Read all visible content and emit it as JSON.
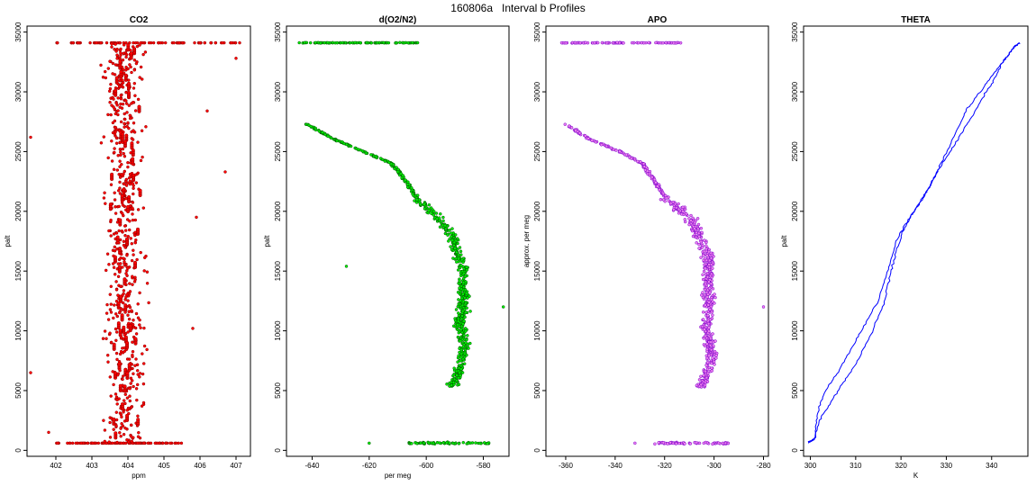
{
  "figure": {
    "title": "160806a   Interval b Profiles"
  },
  "chart_data": [
    {
      "type": "scatter",
      "title": "CO2",
      "xlabel": "ppm",
      "ylabel": "palt",
      "xlim": [
        401.2,
        407.4
      ],
      "ylim": [
        -500,
        35500
      ],
      "xticks": [
        402,
        403,
        404,
        405,
        406,
        407
      ],
      "yticks": [
        0,
        5000,
        10000,
        15000,
        20000,
        25000,
        30000,
        35000
      ],
      "point_color": "#ff0000",
      "point_edge_color": "#8b0000",
      "dense_band_x": [
        402.0,
        405.5
      ],
      "dense_band_y": [
        600,
        34100
      ],
      "bulk_center_x": 403.9,
      "bulk_halfwidth_x": 0.55,
      "outliers": [
        {
          "x": 401.3,
          "y": 26200
        },
        {
          "x": 401.3,
          "y": 6500
        },
        {
          "x": 406.7,
          "y": 23300
        },
        {
          "x": 407.0,
          "y": 32800
        },
        {
          "x": 407.1,
          "y": 34100
        },
        {
          "x": 406.2,
          "y": 28400
        },
        {
          "x": 405.9,
          "y": 19500
        },
        {
          "x": 405.8,
          "y": 10200
        },
        {
          "x": 401.8,
          "y": 1500
        }
      ]
    },
    {
      "type": "scatter",
      "title": "d(O2/N2)",
      "xlabel": "per meg",
      "ylabel": "palt",
      "xlim": [
        -649,
        -571
      ],
      "ylim": [
        -500,
        35500
      ],
      "xticks": [
        -640,
        -620,
        -600,
        -580
      ],
      "yticks": [
        0,
        5000,
        10000,
        15000,
        20000,
        25000,
        30000,
        35000
      ],
      "point_color": "#00ee00",
      "point_edge_color": "#005500",
      "profile": [
        {
          "y": 27300,
          "x": -642
        },
        {
          "y": 26000,
          "x": -632
        },
        {
          "y": 25000,
          "x": -622
        },
        {
          "y": 24000,
          "x": -612
        },
        {
          "y": 22500,
          "x": -607
        },
        {
          "y": 21000,
          "x": -603
        },
        {
          "y": 19500,
          "x": -596
        },
        {
          "y": 18000,
          "x": -591
        },
        {
          "y": 16500,
          "x": -589
        },
        {
          "y": 15000,
          "x": -587
        },
        {
          "y": 13500,
          "x": -587
        },
        {
          "y": 12000,
          "x": -587
        },
        {
          "y": 10500,
          "x": -588
        },
        {
          "y": 9000,
          "x": -587
        },
        {
          "y": 7500,
          "x": -587
        },
        {
          "y": 6500,
          "x": -589
        },
        {
          "y": 5300,
          "x": -591
        }
      ],
      "top_band": {
        "y": 34100,
        "xmin": -645,
        "xmax": -603
      },
      "bottom_band": {
        "y": 600,
        "xmin": -607,
        "xmax": -578
      },
      "outliers": [
        {
          "x": -628,
          "y": 15400
        },
        {
          "x": -573,
          "y": 12000
        },
        {
          "x": -620,
          "y": 600
        }
      ]
    },
    {
      "type": "scatter",
      "title": "APO",
      "xlabel": "",
      "ylabel": "approx. per meg",
      "xlim": [
        -368,
        -278
      ],
      "ylim": [
        -500,
        35500
      ],
      "xticks": [
        -360,
        -340,
        -320,
        -300,
        -280
      ],
      "yticks": [
        0,
        5000,
        10000,
        15000,
        20000,
        25000,
        30000,
        35000
      ],
      "point_color": "#ee82ee",
      "point_edge_color": "#7a00cc",
      "profile": [
        {
          "y": 27300,
          "x": -360
        },
        {
          "y": 26000,
          "x": -350
        },
        {
          "y": 25000,
          "x": -338
        },
        {
          "y": 24000,
          "x": -329
        },
        {
          "y": 22500,
          "x": -324
        },
        {
          "y": 21000,
          "x": -319
        },
        {
          "y": 19500,
          "x": -310
        },
        {
          "y": 18000,
          "x": -306
        },
        {
          "y": 16500,
          "x": -303
        },
        {
          "y": 15000,
          "x": -302
        },
        {
          "y": 13500,
          "x": -302
        },
        {
          "y": 12000,
          "x": -302
        },
        {
          "y": 10500,
          "x": -303
        },
        {
          "y": 9000,
          "x": -302
        },
        {
          "y": 7500,
          "x": -301
        },
        {
          "y": 6500,
          "x": -303
        },
        {
          "y": 5300,
          "x": -305
        }
      ],
      "top_band": {
        "y": 34100,
        "xmin": -362,
        "xmax": -313
      },
      "bottom_band": {
        "y": 600,
        "xmin": -324,
        "xmax": -294
      },
      "outliers": [
        {
          "x": -280,
          "y": 12000
        },
        {
          "x": -332,
          "y": 600
        }
      ]
    },
    {
      "type": "line",
      "title": "THETA",
      "xlabel": "K",
      "ylabel": "palt",
      "xlim": [
        298.5,
        348
      ],
      "ylim": [
        -500,
        35500
      ],
      "xticks": [
        300,
        310,
        320,
        330,
        340
      ],
      "yticks": [
        0,
        5000,
        10000,
        15000,
        20000,
        25000,
        30000,
        35000
      ],
      "line_color": "#0000ff",
      "series": [
        {
          "x": [
            299.5,
            301.0,
            301.5,
            303.0,
            306.0,
            309.0,
            312.0,
            315.0,
            317.0,
            319.0,
            321.0,
            323.0,
            325.5,
            327.5,
            330.0,
            332.5,
            335.0,
            338.0,
            340.5,
            342.5,
            344.5,
            346.0
          ],
          "y": [
            700,
            1000,
            3000,
            4800,
            6500,
            8500,
            10500,
            12500,
            15000,
            17500,
            19000,
            20000,
            21500,
            23000,
            24500,
            26000,
            27500,
            29500,
            31000,
            32500,
            33500,
            34100
          ]
        },
        {
          "x": [
            299.5,
            300.8,
            302.0,
            304.5,
            307.5,
            310.5,
            313.5,
            316.0,
            317.5,
            318.5,
            320.0,
            322.0,
            324.5,
            327.0,
            329.5,
            332.0,
            334.5,
            337.5,
            340.5,
            343.0,
            345.0,
            346.2
          ],
          "y": [
            600,
            900,
            2500,
            4000,
            5800,
            7500,
            9800,
            12000,
            14500,
            16000,
            18000,
            19500,
            21000,
            22500,
            24500,
            26500,
            28500,
            30000,
            31500,
            32800,
            33800,
            34100
          ]
        }
      ]
    }
  ]
}
